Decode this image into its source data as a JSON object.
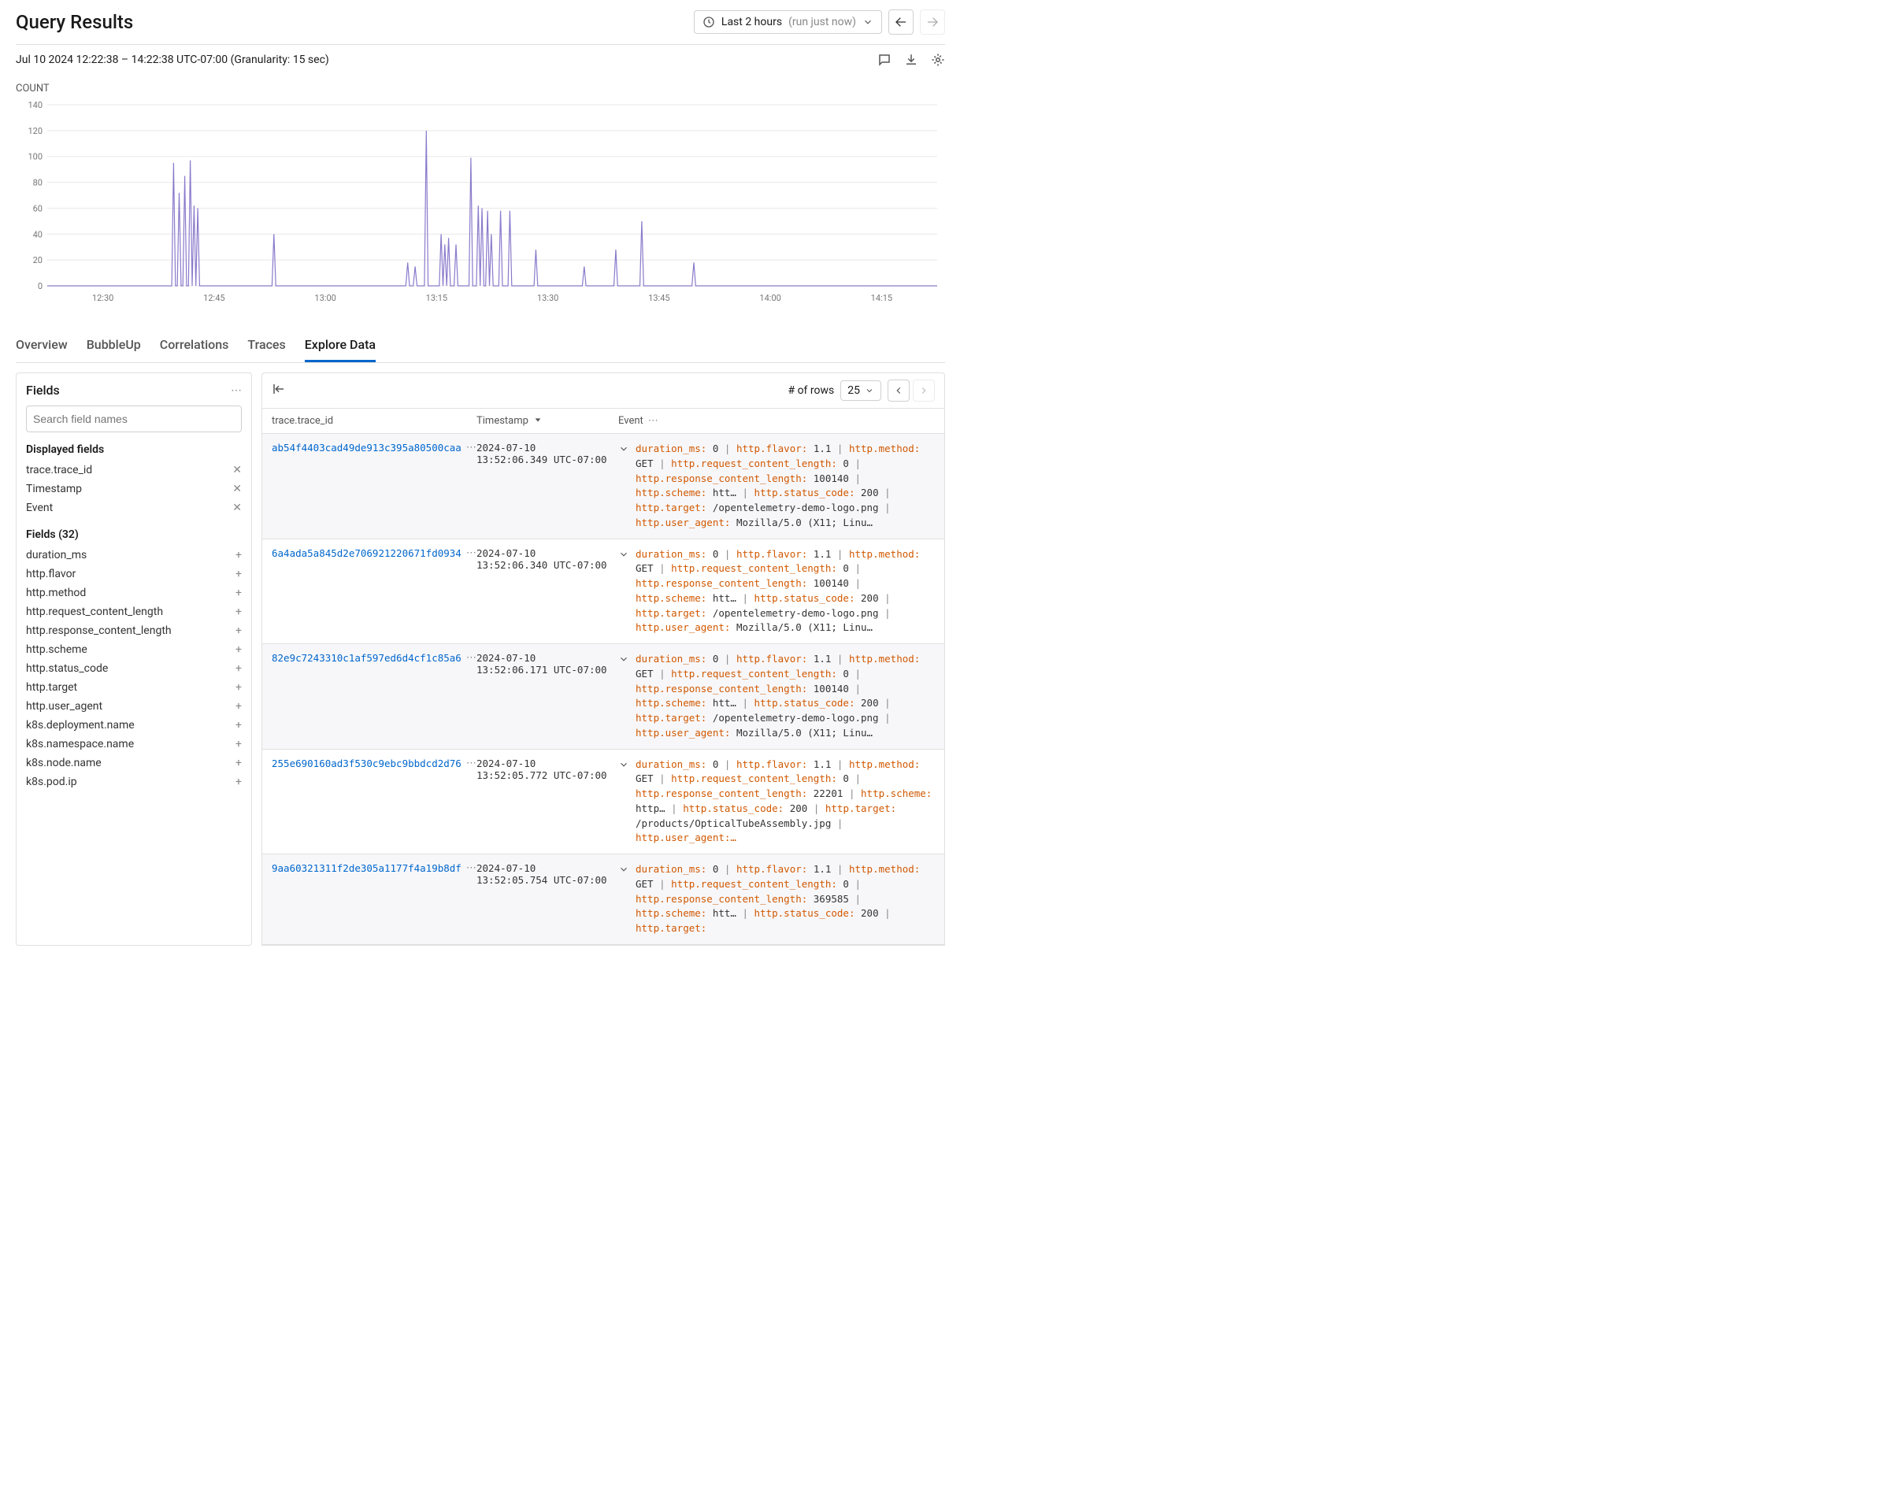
{
  "header": {
    "title": "Query Results",
    "time_range_label": "Last 2 hours",
    "time_range_sub": "(run just now)"
  },
  "subheader": {
    "timestamp": "Jul 10 2024 12:22:38 – 14:22:38 UTC-07:00 (Granularity: 15 sec)"
  },
  "chart": {
    "title": "COUNT",
    "type": "line",
    "background_color": "#ffffff",
    "grid_color": "#e8e8e8",
    "line_color": "#8a7acb",
    "line_width": 1.2,
    "ylim": [
      0,
      140
    ],
    "ytick_step": 20,
    "yticks": [
      0,
      20,
      40,
      60,
      80,
      100,
      120,
      140
    ],
    "xlim": [
      0,
      480
    ],
    "xticks": [
      {
        "pos": 30,
        "label": "12:30"
      },
      {
        "pos": 90,
        "label": "12:45"
      },
      {
        "pos": 150,
        "label": "13:00"
      },
      {
        "pos": 210,
        "label": "13:15"
      },
      {
        "pos": 270,
        "label": "13:30"
      },
      {
        "pos": 330,
        "label": "13:45"
      },
      {
        "pos": 390,
        "label": "14:00"
      },
      {
        "pos": 450,
        "label": "14:15"
      }
    ],
    "label_fontsize": 11,
    "label_color": "#777",
    "values": [
      0,
      0,
      0,
      0,
      0,
      0,
      0,
      0,
      0,
      0,
      0,
      0,
      0,
      0,
      0,
      0,
      0,
      0,
      0,
      0,
      0,
      0,
      0,
      0,
      0,
      0,
      0,
      0,
      0,
      0,
      0,
      0,
      0,
      0,
      0,
      0,
      0,
      0,
      0,
      0,
      0,
      0,
      0,
      0,
      0,
      0,
      0,
      0,
      0,
      0,
      0,
      0,
      0,
      0,
      0,
      0,
      0,
      0,
      0,
      0,
      0,
      0,
      0,
      0,
      0,
      0,
      0,
      0,
      95,
      0,
      0,
      72,
      0,
      0,
      85,
      0,
      0,
      97,
      0,
      62,
      0,
      60,
      0,
      0,
      0,
      0,
      0,
      0,
      0,
      0,
      0,
      0,
      0,
      0,
      0,
      0,
      0,
      0,
      0,
      0,
      0,
      0,
      0,
      0,
      0,
      0,
      0,
      0,
      0,
      0,
      0,
      0,
      0,
      0,
      0,
      0,
      0,
      0,
      0,
      0,
      0,
      0,
      40,
      0,
      0,
      0,
      0,
      0,
      0,
      0,
      0,
      0,
      0,
      0,
      0,
      0,
      0,
      0,
      0,
      0,
      0,
      0,
      0,
      0,
      0,
      0,
      0,
      0,
      0,
      0,
      0,
      0,
      0,
      0,
      0,
      0,
      0,
      0,
      0,
      0,
      0,
      0,
      0,
      0,
      0,
      0,
      0,
      0,
      0,
      0,
      0,
      0,
      0,
      0,
      0,
      0,
      0,
      0,
      0,
      0,
      0,
      0,
      0,
      0,
      0,
      0,
      0,
      0,
      0,
      0,
      0,
      0,
      0,
      0,
      18,
      0,
      0,
      0,
      15,
      0,
      0,
      0,
      0,
      0,
      120,
      0,
      0,
      0,
      0,
      0,
      0,
      0,
      40,
      0,
      32,
      0,
      37,
      0,
      0,
      0,
      32,
      0,
      0,
      0,
      0,
      0,
      0,
      0,
      99,
      0,
      0,
      0,
      62,
      0,
      60,
      0,
      0,
      58,
      0,
      40,
      0,
      0,
      0,
      0,
      58,
      0,
      0,
      0,
      0,
      58,
      0,
      0,
      0,
      0,
      0,
      0,
      0,
      0,
      0,
      0,
      0,
      0,
      0,
      28,
      0,
      0,
      0,
      0,
      0,
      0,
      0,
      0,
      0,
      0,
      0,
      0,
      0,
      0,
      0,
      0,
      0,
      0,
      0,
      0,
      0,
      0,
      0,
      0,
      0,
      15,
      0,
      0,
      0,
      0,
      0,
      0,
      0,
      0,
      0,
      0,
      0,
      0,
      0,
      0,
      0,
      0,
      28,
      0,
      0,
      0,
      0,
      0,
      0,
      0,
      0,
      0,
      0,
      0,
      0,
      0,
      50,
      0,
      0,
      0,
      0,
      0,
      0,
      0,
      0,
      0,
      0,
      0,
      0,
      0,
      0,
      0,
      0,
      0,
      0,
      0,
      0,
      0,
      0,
      0,
      0,
      0,
      0,
      0,
      18,
      0,
      0,
      0,
      0,
      0,
      0,
      0,
      0,
      0,
      0,
      0,
      0,
      0,
      0,
      0,
      0,
      0,
      0,
      0,
      0,
      0,
      0,
      0,
      0,
      0,
      0,
      0,
      0,
      0,
      0,
      0,
      0,
      0,
      0,
      0,
      0,
      0,
      0,
      0,
      0,
      0,
      0,
      0,
      0,
      0,
      0,
      0,
      0,
      0,
      0,
      0,
      0,
      0,
      0,
      0,
      0,
      0,
      0,
      0,
      0,
      0,
      0,
      0,
      0,
      0,
      0,
      0,
      0,
      0,
      0,
      0,
      0,
      0,
      0,
      0,
      0,
      0,
      0,
      0,
      0,
      0,
      0,
      0,
      0,
      0,
      0,
      0,
      0,
      0,
      0,
      0,
      0,
      0,
      0,
      0,
      0,
      0,
      0,
      0,
      0,
      0,
      0,
      0,
      0,
      0,
      0,
      0,
      0,
      0,
      0,
      0,
      0,
      0,
      0,
      0,
      0,
      0,
      0,
      0,
      0,
      0,
      0,
      0,
      0,
      0,
      0,
      0,
      0,
      0,
      0,
      0
    ]
  },
  "tabs": {
    "items": [
      "Overview",
      "BubbleUp",
      "Correlations",
      "Traces",
      "Explore Data"
    ],
    "active": 4
  },
  "fields_panel": {
    "title": "Fields",
    "search_placeholder": "Search field names",
    "displayed_label": "Displayed fields",
    "displayed": [
      "trace.trace_id",
      "Timestamp",
      "Event"
    ],
    "all_label": "Fields (32)",
    "all": [
      "duration_ms",
      "http.flavor",
      "http.method",
      "http.request_content_length",
      "http.response_content_length",
      "http.scheme",
      "http.status_code",
      "http.target",
      "http.user_agent",
      "k8s.deployment.name",
      "k8s.namespace.name",
      "k8s.node.name",
      "k8s.pod.ip"
    ]
  },
  "table": {
    "rows_label": "# of rows",
    "rows_value": "25",
    "columns": [
      "trace.trace_id",
      "Timestamp",
      "Event"
    ],
    "rows": [
      {
        "trace_id": "ab54f4403cad49de913c395a80500caa",
        "ts1": "2024-07-10",
        "ts2": "13:52:06.349 UTC-07:00",
        "event": [
          [
            "duration_ms:",
            "0"
          ],
          [
            "http.flavor:",
            "1.1"
          ],
          [
            "http.method:",
            "GET"
          ],
          [
            "http.request_content_length:",
            "0"
          ],
          [
            "http.response_content_length:",
            "100140"
          ],
          [
            "http.scheme:",
            "htt…"
          ],
          [
            "http.status_code:",
            "200"
          ],
          [
            "http.target:",
            "/opentelemetry-demo-logo.png"
          ],
          [
            "http.user_agent:",
            "Mozilla/5.0 (X11; Linu…"
          ]
        ]
      },
      {
        "trace_id": "6a4ada5a845d2e706921220671fd0934",
        "ts1": "2024-07-10",
        "ts2": "13:52:06.340 UTC-07:00",
        "event": [
          [
            "duration_ms:",
            "0"
          ],
          [
            "http.flavor:",
            "1.1"
          ],
          [
            "http.method:",
            "GET"
          ],
          [
            "http.request_content_length:",
            "0"
          ],
          [
            "http.response_content_length:",
            "100140"
          ],
          [
            "http.scheme:",
            "htt…"
          ],
          [
            "http.status_code:",
            "200"
          ],
          [
            "http.target:",
            "/opentelemetry-demo-logo.png"
          ],
          [
            "http.user_agent:",
            "Mozilla/5.0 (X11; Linu…"
          ]
        ]
      },
      {
        "trace_id": "82e9c7243310c1af597ed6d4cf1c85a6",
        "ts1": "2024-07-10",
        "ts2": "13:52:06.171 UTC-07:00",
        "event": [
          [
            "duration_ms:",
            "0"
          ],
          [
            "http.flavor:",
            "1.1"
          ],
          [
            "http.method:",
            "GET"
          ],
          [
            "http.request_content_length:",
            "0"
          ],
          [
            "http.response_content_length:",
            "100140"
          ],
          [
            "http.scheme:",
            "htt…"
          ],
          [
            "http.status_code:",
            "200"
          ],
          [
            "http.target:",
            "/opentelemetry-demo-logo.png"
          ],
          [
            "http.user_agent:",
            "Mozilla/5.0 (X11; Linu…"
          ]
        ]
      },
      {
        "trace_id": "255e690160ad3f530c9ebc9bbdcd2d76",
        "ts1": "2024-07-10",
        "ts2": "13:52:05.772 UTC-07:00",
        "event": [
          [
            "duration_ms:",
            "0"
          ],
          [
            "http.flavor:",
            "1.1"
          ],
          [
            "http.method:",
            "GET"
          ],
          [
            "http.request_content_length:",
            "0"
          ],
          [
            "http.response_content_length:",
            "22201"
          ],
          [
            "http.scheme:",
            "http…"
          ],
          [
            "http.status_code:",
            "200"
          ],
          [
            "http.target:",
            "/products/OpticalTubeAssembly.jpg"
          ],
          [
            "http.user_agent:…",
            ""
          ]
        ]
      },
      {
        "trace_id": "9aa60321311f2de305a1177f4a19b8df",
        "ts1": "2024-07-10",
        "ts2": "13:52:05.754 UTC-07:00",
        "event": [
          [
            "duration_ms:",
            "0"
          ],
          [
            "http.flavor:",
            "1.1"
          ],
          [
            "http.method:",
            "GET"
          ],
          [
            "http.request_content_length:",
            "0"
          ],
          [
            "http.response_content_length:",
            "369585"
          ],
          [
            "http.scheme:",
            "htt…"
          ],
          [
            "http.status_code:",
            "200"
          ],
          [
            "http.target:",
            ""
          ]
        ]
      }
    ]
  }
}
